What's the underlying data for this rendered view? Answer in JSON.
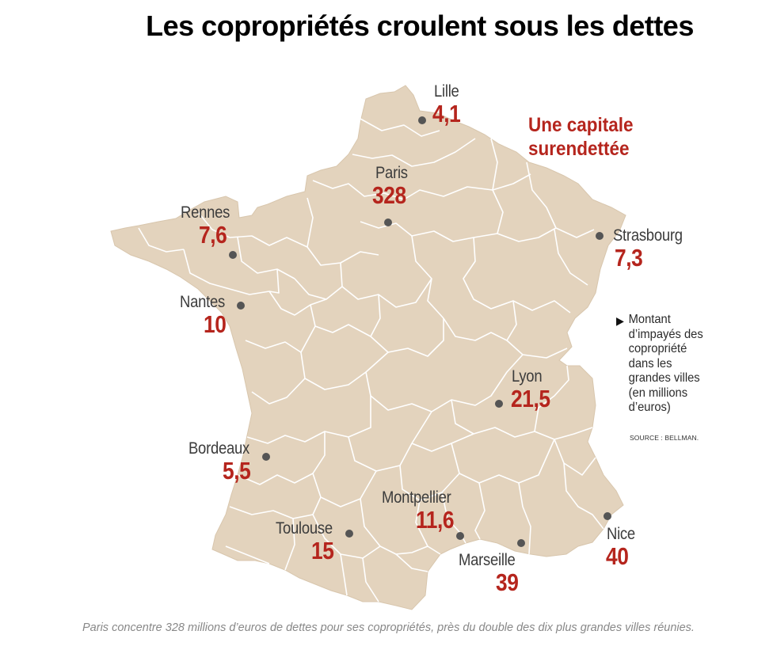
{
  "title": "Les copropriétés croulent sous les dettes",
  "headline": {
    "line1": "Une capitale",
    "line2": "surendettée"
  },
  "colors": {
    "land": "#e3d3bd",
    "border": "#ffffff",
    "value": "#b5251d",
    "dot": "#555555"
  },
  "cities": [
    {
      "id": "lille",
      "name": "Lille",
      "value": "4,1"
    },
    {
      "id": "paris",
      "name": "Paris",
      "value": "328"
    },
    {
      "id": "rennes",
      "name": "Rennes",
      "value": "7,6"
    },
    {
      "id": "strasbourg",
      "name": "Strasbourg",
      "value": "7,3"
    },
    {
      "id": "nantes",
      "name": "Nantes",
      "value": "10"
    },
    {
      "id": "lyon",
      "name": "Lyon",
      "value": "21,5"
    },
    {
      "id": "bordeaux",
      "name": "Bordeaux",
      "value": "5,5"
    },
    {
      "id": "montpellier",
      "name": "Montpellier",
      "value": "11,6"
    },
    {
      "id": "toulouse",
      "name": "Toulouse",
      "value": "15"
    },
    {
      "id": "nice",
      "name": "Nice",
      "value": "40"
    },
    {
      "id": "marseille",
      "name": "Marseille",
      "value": "39"
    }
  ],
  "legend": {
    "text": "Montant\nd’impayés des\ncopropriété\ndans les\ngrandes villes\n(en millions\nd’euros)",
    "source": "SOURCE : BELLMAN."
  },
  "caption": "Paris concentre 328 millions d’euros de dettes pour ses copropriétés, près du double des dix plus grandes villes réunies."
}
